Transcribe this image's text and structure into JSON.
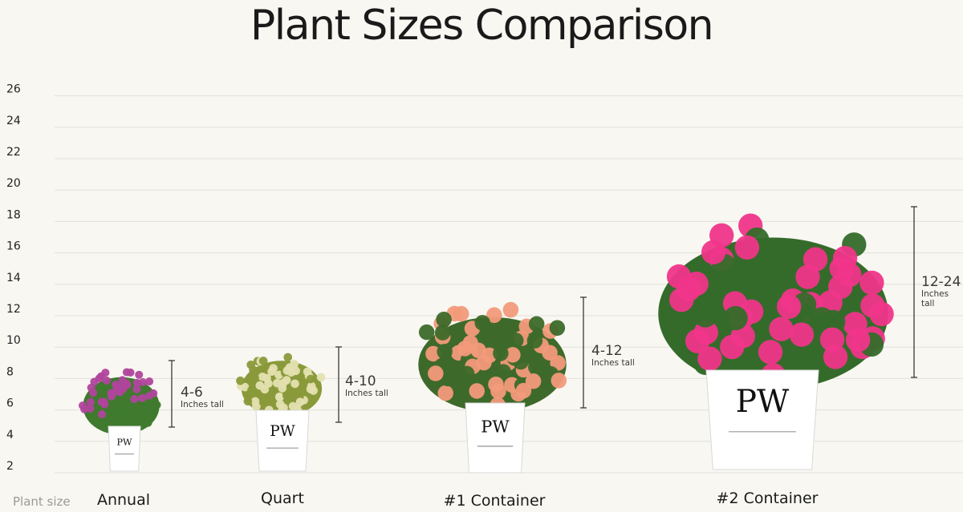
{
  "chart_data": {
    "type": "bar",
    "title": "Plant Sizes Comparison",
    "xlabel": "Plant size",
    "ylabel": "",
    "ylim": [
      2,
      26
    ],
    "yticks": [
      2,
      4,
      6,
      8,
      10,
      12,
      14,
      16,
      18,
      20,
      22,
      24,
      26
    ],
    "grid": true,
    "categories": [
      "Annual",
      "Quart",
      "#1 Container",
      "#2 Container"
    ],
    "ranges": [
      {
        "label": "4-6",
        "unit": "Inches tall",
        "min": 4,
        "max": 6
      },
      {
        "label": "4-10",
        "unit": "Inches tall",
        "min": 4,
        "max": 10
      },
      {
        "label": "4-12",
        "unit": "Inches tall",
        "min": 4,
        "max": 12
      },
      {
        "label": "12-24",
        "unit": "Inches tall",
        "min": 12,
        "max": 24
      }
    ],
    "plants": [
      {
        "flower_color": "#b0449c",
        "leaf_color": "#3f7a2e",
        "brand": "PW"
      },
      {
        "flower_color": "#e4e0b0",
        "leaf_color": "#8a9a3a",
        "brand": "PW"
      },
      {
        "flower_color": "#f29a7a",
        "leaf_color": "#3d6a2a",
        "brand": "PW"
      },
      {
        "flower_color": "#f0358a",
        "leaf_color": "#356b2a",
        "brand": "PW"
      }
    ]
  }
}
